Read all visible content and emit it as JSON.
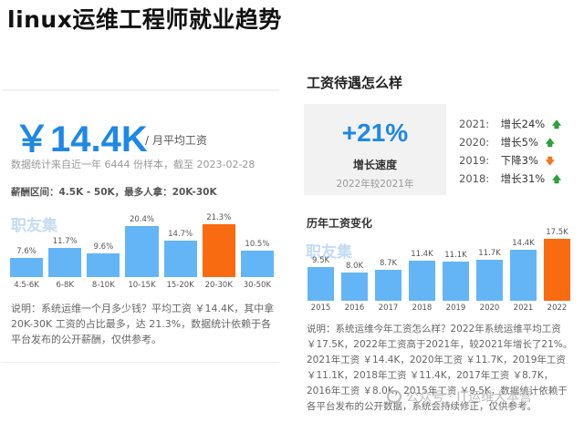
{
  "page": {
    "title": "linux运维工程师就业趋势"
  },
  "salary": {
    "average": "￥14.4K",
    "average_label": "/ 月平均工资",
    "stats_note": "数据统计来自近一年 6444 份样本，截至 2023-02-28",
    "range_info": "薪酬区间：4.5K - 50K，最多人拿：20K-30K",
    "watermark": "职友集",
    "desc": "说明：系统运维一个月多少钱？平均工资 ￥14.4K，其中拿 20K-30K 工资的占比最多，达 21.3%，数据统计依赖于各平台发布的公开薪酬，仅供参考。"
  },
  "salary_chart": {
    "type": "bar",
    "categories": [
      "4.5-6K",
      "6-8K",
      "8-10K",
      "10-15K",
      "15-20K",
      "20-30K",
      "30-50K"
    ],
    "values": [
      7.6,
      11.7,
      9.6,
      20.4,
      14.7,
      21.3,
      10.5
    ],
    "labels": [
      "7.6%",
      "11.7%",
      "9.6%",
      "20.4%",
      "14.7%",
      "21.3%",
      "10.5%"
    ],
    "highlight_index": 5,
    "bar_color": "#64b5f6",
    "highlight_color": "#f96b10",
    "ylim": [
      0,
      21.3
    ]
  },
  "treatment": {
    "heading": "工资待遇怎么样",
    "growth_value": "+21%",
    "growth_label": "增长速度",
    "growth_compare": "2022年较2021年",
    "years": [
      {
        "year": "2021:",
        "change": "增长24%",
        "direction": "up"
      },
      {
        "year": "2020:",
        "change": "增长5%",
        "direction": "up"
      },
      {
        "year": "2019:",
        "change": "下降3%",
        "direction": "down"
      },
      {
        "year": "2018:",
        "change": "增长31%",
        "direction": "up"
      }
    ]
  },
  "history": {
    "heading": "历年工资变化",
    "watermark": "职友集",
    "desc": "说明：系统运维今年工资怎么样？2022年系统运维平均工资 ￥17.5K，2022年工资高于2021年，较2021年增长了21%。2021年工资 ￥14.4K，2020年工资 ￥11.7K，2019年工资 ￥11.1K，2018年工资 ￥11.4K，2017年工资 ￥8.7K，2016年工资 ￥8.0K，2015年工资 ￥9.5K，数据统计依赖于各平台发布的公开数据，系统会持续修正，仅供参考。"
  },
  "history_chart": {
    "type": "bar",
    "categories": [
      "2015",
      "2016",
      "2017",
      "2018",
      "2019",
      "2020",
      "2021",
      "2022"
    ],
    "values": [
      9.5,
      8.0,
      8.7,
      11.4,
      11.1,
      11.7,
      14.4,
      17.5
    ],
    "labels": [
      "9.5K",
      "8.0K",
      "8.7K",
      "11.4K",
      "11.1K",
      "11.7K",
      "14.4K",
      "17.5K"
    ],
    "highlight_index": 7,
    "bar_color": "#64b5f6",
    "highlight_color": "#f96b10",
    "ylim": [
      0,
      17.5
    ]
  },
  "footer": {
    "watermark": "公众号 · IT运维大本营"
  },
  "colors": {
    "accent": "#1e88e5",
    "up": "#2e9e3e",
    "down": "#f0791f"
  }
}
